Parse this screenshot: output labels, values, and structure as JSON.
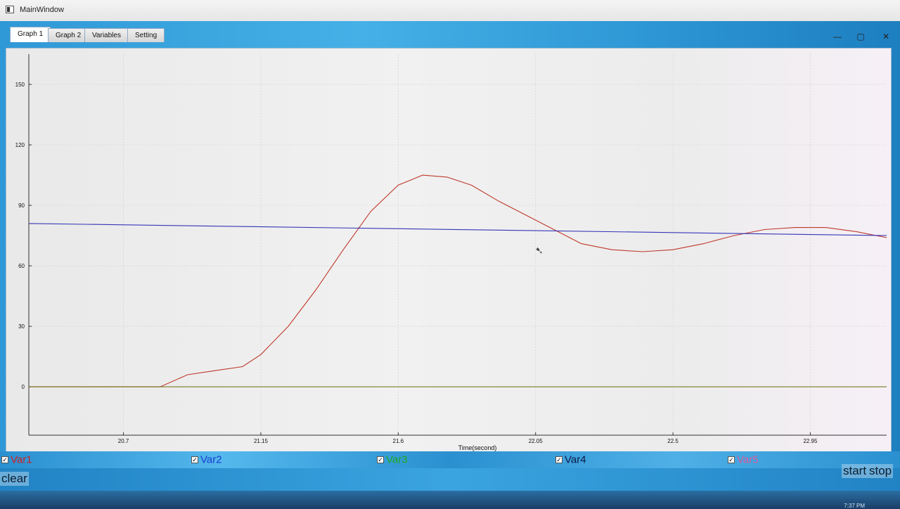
{
  "window": {
    "title": "MainWindow",
    "controls": {
      "minimize": "—",
      "maximize": "▢",
      "close": "✕"
    }
  },
  "tabs": [
    {
      "label": "Graph 1",
      "active": true
    },
    {
      "label": "Graph 2",
      "active": false
    },
    {
      "label": "Variables",
      "active": false
    },
    {
      "label": "Setting",
      "active": false
    }
  ],
  "chart_data": {
    "type": "line",
    "title": "",
    "xlabel": "Time(second)",
    "ylabel": "",
    "xlim": [
      20.39,
      23.2
    ],
    "ylim": [
      -24,
      165
    ],
    "x_ticks": [
      20.7,
      21.15,
      21.6,
      22.05,
      22.5,
      22.95
    ],
    "y_ticks": [
      0,
      30,
      60,
      90,
      120,
      150
    ],
    "grid": true,
    "series": [
      {
        "name": "Var1",
        "color": "#c0392b",
        "x": [
          20.39,
          20.5,
          20.6,
          20.71,
          20.82,
          20.91,
          21.0,
          21.09,
          21.15,
          21.24,
          21.33,
          21.42,
          21.51,
          21.6,
          21.68,
          21.76,
          21.84,
          21.93,
          22.02,
          22.11,
          22.2,
          22.3,
          22.4,
          22.5,
          22.6,
          22.7,
          22.8,
          22.9,
          23.0,
          23.1,
          23.2
        ],
        "y": [
          0,
          0,
          0,
          0,
          0,
          6,
          8,
          10,
          16,
          30,
          48,
          68,
          87,
          100,
          105,
          104,
          100,
          92,
          85,
          78,
          71,
          68,
          67,
          68,
          71,
          75,
          78,
          79,
          79,
          77,
          74
        ]
      },
      {
        "name": "Var2",
        "color": "#3535b8",
        "x": [
          20.39,
          23.2
        ],
        "y": [
          81,
          75
        ]
      },
      {
        "name": "Var3",
        "color": "#7a7a22",
        "x": [
          20.39,
          23.2
        ],
        "y": [
          0,
          0
        ]
      }
    ]
  },
  "legend": [
    {
      "label": "Var1",
      "color": "#cc2222",
      "checked": true
    },
    {
      "label": "Var2",
      "color": "#1a3fd0",
      "checked": true
    },
    {
      "label": "Var3",
      "color": "#22aa22",
      "checked": true
    },
    {
      "label": "Var4",
      "color": "#0d1b4a",
      "checked": true
    },
    {
      "label": "Var5",
      "color": "#d95a9a",
      "checked": true
    }
  ],
  "checkmark": "✓",
  "controls": {
    "clear_label": "clear",
    "start_label": "start",
    "stop_label": "stop"
  },
  "taskbar": {
    "clock": "7:37 PM"
  }
}
